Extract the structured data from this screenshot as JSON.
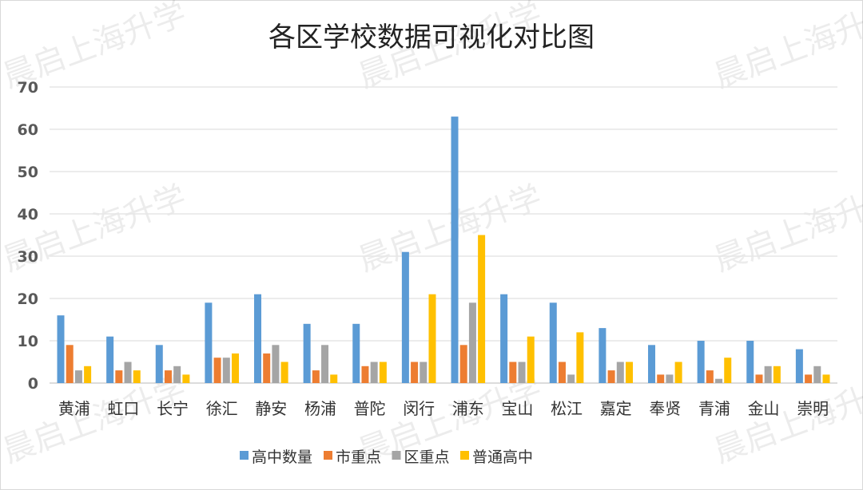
{
  "chart_data": {
    "type": "bar",
    "title": "各区学校数据可视化对比图",
    "xlabel": "",
    "ylabel": "",
    "ylim": [
      0,
      70
    ],
    "yticks": [
      0,
      10,
      20,
      30,
      40,
      50,
      60,
      70
    ],
    "grid": true,
    "legend_position": "bottom",
    "categories": [
      "黄浦",
      "虹口",
      "长宁",
      "徐汇",
      "静安",
      "杨浦",
      "普陀",
      "闵行",
      "浦东",
      "宝山",
      "松江",
      "嘉定",
      "奉贤",
      "青浦",
      "金山",
      "崇明"
    ],
    "series": [
      {
        "name": "高中数量",
        "color": "#5b9bd5",
        "values": [
          16,
          11,
          9,
          19,
          21,
          14,
          14,
          31,
          63,
          21,
          19,
          13,
          9,
          10,
          10,
          8
        ]
      },
      {
        "name": "市重点",
        "color": "#ed7d31",
        "values": [
          9,
          3,
          3,
          6,
          7,
          3,
          4,
          5,
          9,
          5,
          5,
          3,
          2,
          3,
          2,
          2
        ]
      },
      {
        "name": "区重点",
        "color": "#a5a5a5",
        "values": [
          3,
          5,
          4,
          6,
          9,
          9,
          5,
          5,
          19,
          5,
          2,
          5,
          2,
          1,
          4,
          4
        ]
      },
      {
        "name": "普通高中",
        "color": "#ffc000",
        "values": [
          4,
          3,
          2,
          7,
          5,
          2,
          5,
          21,
          35,
          11,
          12,
          5,
          5,
          6,
          4,
          2
        ]
      }
    ]
  },
  "watermark": "晨启上海升学"
}
